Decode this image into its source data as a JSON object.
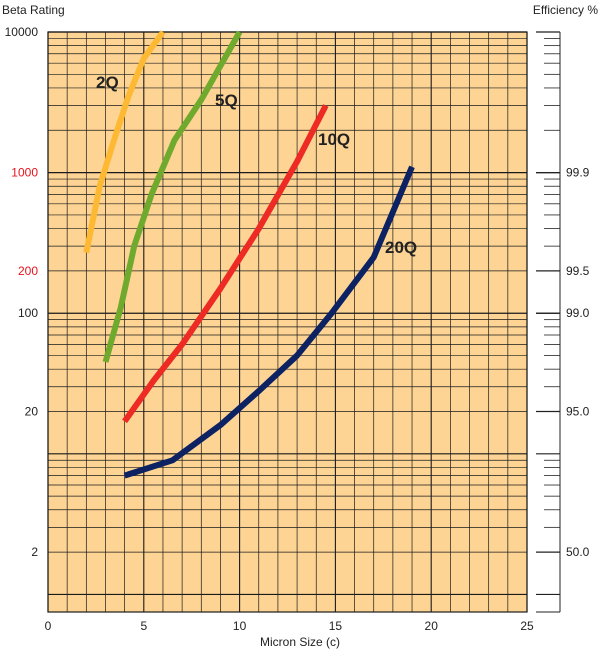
{
  "chart_data": {
    "type": "line",
    "ylabel": "Beta Rating",
    "xlabel": "Micron Size (c)",
    "right_label": "Efficiency %",
    "xlim": [
      0,
      25
    ],
    "x_ticks": [
      "0",
      "5",
      "10",
      "15",
      "20",
      "25"
    ],
    "y_scale": "log",
    "ylim": [
      0.75,
      10000
    ],
    "y_ticks": [
      {
        "value": 10000,
        "label": "10000",
        "color": "#222222"
      },
      {
        "value": 1000,
        "label": "1000",
        "color": "#e8131d"
      },
      {
        "value": 200,
        "label": "200",
        "color": "#e8131d"
      },
      {
        "value": 100,
        "label": "100",
        "color": "#222222"
      },
      {
        "value": 20,
        "label": "20",
        "color": "#222222"
      },
      {
        "value": 2,
        "label": "2",
        "color": "#222222"
      }
    ],
    "efficiency_ticks": [
      {
        "beta": 1000,
        "label": "99.9"
      },
      {
        "beta": 200,
        "label": "99.5"
      },
      {
        "beta": 100,
        "label": "99.0"
      },
      {
        "beta": 20,
        "label": "95.0"
      },
      {
        "beta": 2,
        "label": "50.0"
      }
    ],
    "plot_background": "#fdd494",
    "grid_color": "#1a1a1a",
    "series": [
      {
        "name": "2Q",
        "color": "#fdb933",
        "x": [
          2,
          2.7,
          3.5,
          4.2,
          5,
          6
        ],
        "y": [
          270,
          800,
          1800,
          3500,
          6500,
          10000
        ]
      },
      {
        "name": "5Q",
        "color": "#6faa2e",
        "x": [
          3,
          3.8,
          4.5,
          5.4,
          6.6,
          8,
          10
        ],
        "y": [
          45,
          110,
          300,
          700,
          1700,
          3300,
          10000
        ]
      },
      {
        "name": "10Q",
        "color": "#ed2a24",
        "x": [
          4,
          5.5,
          7,
          9,
          11,
          13,
          14.5
        ],
        "y": [
          17,
          33,
          60,
          150,
          400,
          1200,
          3000
        ]
      },
      {
        "name": "20Q",
        "color": "#0c2262",
        "x": [
          4,
          6.5,
          9,
          11,
          13,
          14.8,
          17,
          19
        ],
        "y": [
          7,
          9,
          16,
          28,
          50,
          100,
          250,
          1100
        ]
      }
    ]
  }
}
